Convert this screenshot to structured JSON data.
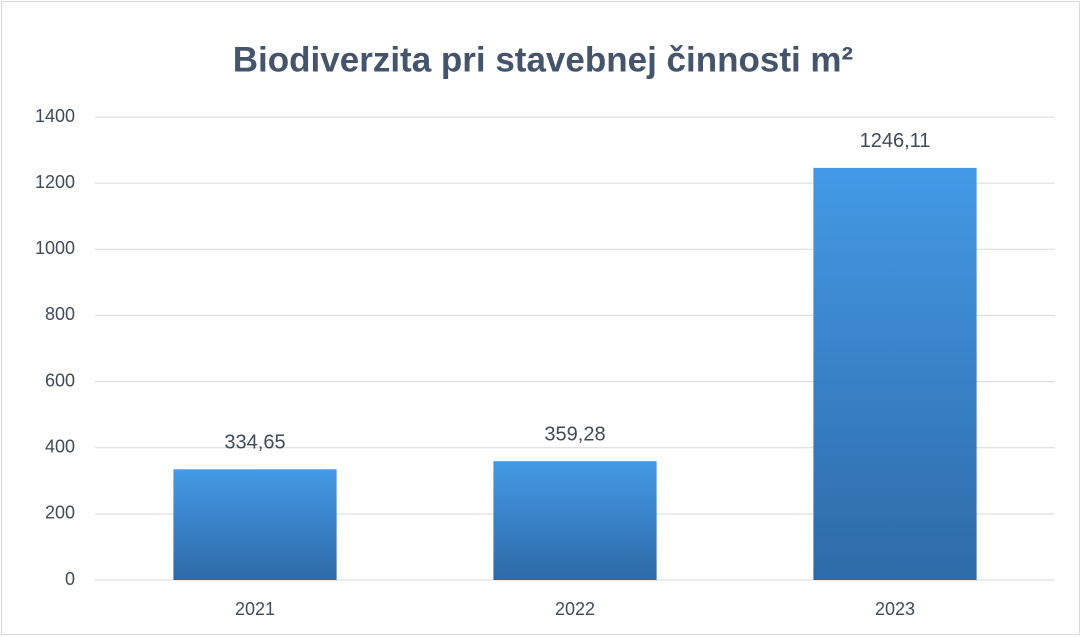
{
  "chart_data": {
    "type": "bar",
    "title": "Biodiverzita pri stavebnej činnosti m²",
    "categories": [
      "2021",
      "2022",
      "2023"
    ],
    "values": [
      334.65,
      359.28,
      1246.11
    ],
    "value_labels": [
      "334,65",
      "359,28",
      "1246,11"
    ],
    "color": "#3d88d4",
    "ylim": [
      0,
      1400
    ],
    "yticks": [
      0,
      200,
      400,
      600,
      800,
      1000,
      1200,
      1400
    ],
    "grid": true
  }
}
